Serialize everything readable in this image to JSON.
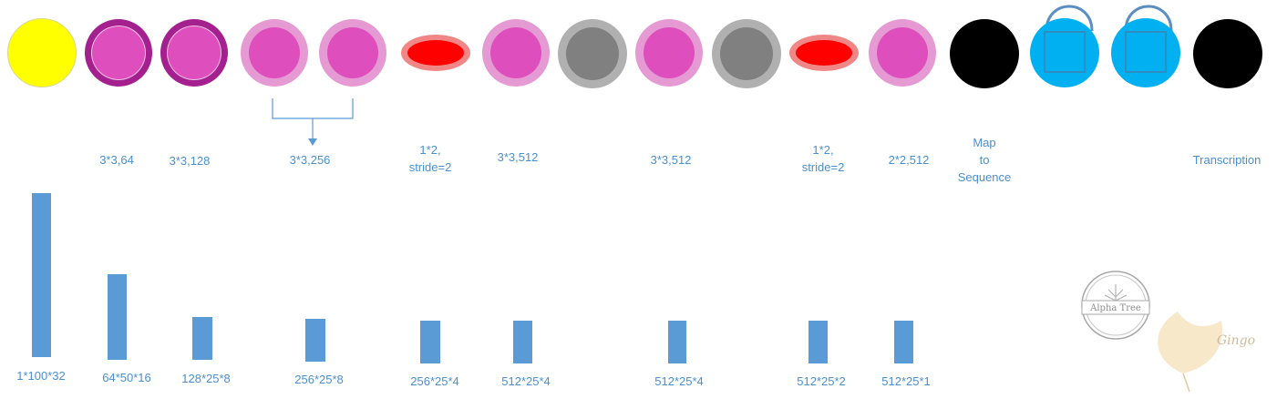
{
  "diagram": {
    "layers": [
      {
        "id": "input",
        "kind": "input"
      },
      {
        "id": "conv1",
        "kind": "conv"
      },
      {
        "id": "conv2",
        "kind": "conv"
      },
      {
        "id": "conv3a",
        "kind": "conv-light"
      },
      {
        "id": "conv3b",
        "kind": "conv-light"
      },
      {
        "id": "pool1",
        "kind": "pool"
      },
      {
        "id": "conv4",
        "kind": "conv-light"
      },
      {
        "id": "bn1",
        "kind": "batchnorm"
      },
      {
        "id": "conv5",
        "kind": "conv-light"
      },
      {
        "id": "bn2",
        "kind": "batchnorm"
      },
      {
        "id": "pool2",
        "kind": "pool"
      },
      {
        "id": "conv6",
        "kind": "conv-light"
      },
      {
        "id": "map",
        "kind": "black"
      },
      {
        "id": "lstm1",
        "kind": "recurrent"
      },
      {
        "id": "lstm2",
        "kind": "recurrent"
      },
      {
        "id": "out",
        "kind": "black"
      }
    ],
    "labels": {
      "conv1": "3*3,64",
      "conv2": "3*3,128",
      "conv3": "3*3,256",
      "pool1_line1": "1*2,",
      "pool1_line2": "stride=2",
      "conv4": "3*3,512",
      "conv5": "3*3,512",
      "pool2_line1": "1*2,",
      "pool2_line2": "stride=2",
      "conv6": "2*2,512",
      "map_line1": "Map",
      "map_line2": "to",
      "map_line3": "Sequence",
      "transcription": "Transcription"
    },
    "feature_maps": [
      {
        "label": "1*100*32",
        "value": 100
      },
      {
        "label": "64*50*16",
        "value": 50
      },
      {
        "label": "128*25*8",
        "value": 25
      },
      {
        "label": "256*25*8",
        "value": 25
      },
      {
        "label": "256*25*4",
        "value": 25
      },
      {
        "label": "512*25*4",
        "value": 25
      },
      {
        "label": "512*25*4",
        "value": 25
      },
      {
        "label": "512*25*2",
        "value": 25
      },
      {
        "label": "512*25*1",
        "value": 25
      }
    ],
    "watermark": {
      "logo1_text": "Alpha Tree",
      "logo2_text": "Gingo"
    },
    "colors": {
      "input": "#ffff00",
      "conv_outer": "#a3208e",
      "conv_light_outer": "#e59ad4",
      "conv_inner": "#de4fbd",
      "pool_outer": "#f18686",
      "pool_inner": "#ff0000",
      "bn_outer": "#b0b0b0",
      "bn_inner": "#808080",
      "black": "#000000",
      "recurrent": "#00b0f0",
      "recurrent_loop": "#5b8ec1",
      "label": "#4a8fd0",
      "bar": "#5b9bd5"
    }
  }
}
